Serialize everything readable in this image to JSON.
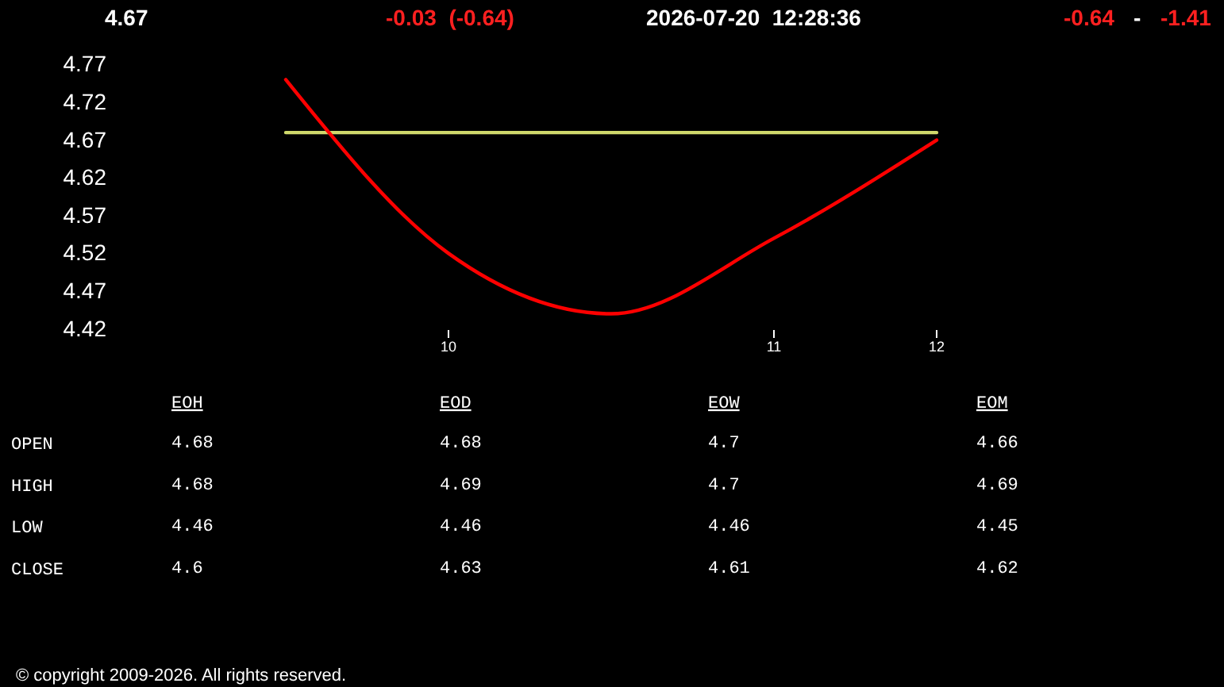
{
  "chart_data": [
    {
      "type": "line",
      "categories": [
        null,
        "10",
        null,
        "11",
        "12"
      ],
      "ylim": [
        4.42,
        4.77
      ],
      "yticks": [
        4.42,
        4.47,
        4.52,
        4.57,
        4.62,
        4.67,
        4.72,
        4.77
      ],
      "series": [
        {
          "color": "#cfd86b",
          "values": [
            4.68,
            4.68,
            4.68,
            4.68,
            4.68
          ]
        },
        {
          "color": "#ff0000",
          "values": [
            4.75,
            4.52,
            4.44,
            4.54,
            4.67
          ]
        }
      ],
      "annotations": [
        "4.67",
        "-0.03  (-0.64)",
        "2026-07-20  12:28:36",
        "-0.64",
        "-",
        "-1.41",
        "© copyright 2009-2026. All rights reserved."
      ]
    },
    {
      "type": "other",
      "categories": [
        "EOH",
        "EOD",
        "EOW",
        "EOM"
      ],
      "series": [
        {
          "name": "OPEN",
          "values": [
            4.68,
            4.68,
            4.7,
            4.66
          ]
        },
        {
          "name": "HIGH",
          "values": [
            4.68,
            4.69,
            4.7,
            4.69
          ]
        },
        {
          "name": "LOW",
          "values": [
            4.46,
            4.46,
            4.46,
            4.45
          ]
        },
        {
          "name": "CLOSE",
          "values": [
            4.6,
            4.63,
            4.61,
            4.62
          ]
        }
      ],
      "data_labels": true
    }
  ]
}
